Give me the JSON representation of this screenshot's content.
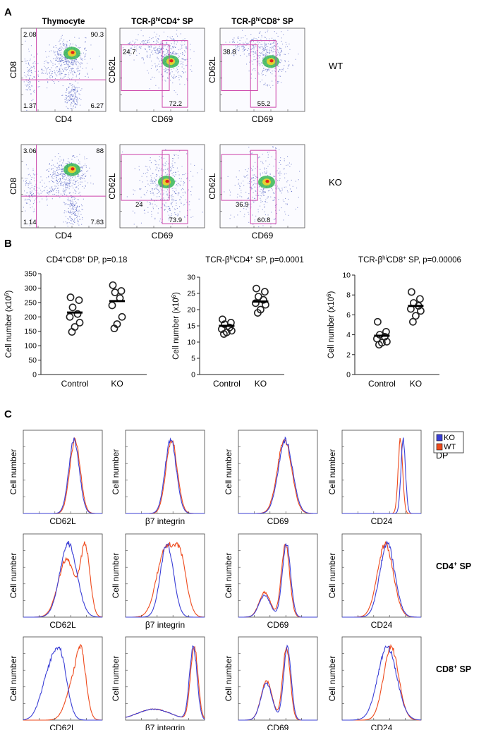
{
  "panels": {
    "a": "A",
    "b": "B",
    "c": "C"
  },
  "panel_a": {
    "columns": [
      "Thymocyte",
      "TCR-βhiCD4+ SP",
      "TCR-βhiCD8+ SP"
    ],
    "rows": [
      "WT",
      "KO"
    ],
    "plots": [
      {
        "row": 0,
        "col": 0,
        "xlabel": "CD4",
        "ylabel": "CD8",
        "gates": "quadrant",
        "values": [
          "2.08",
          "90.3",
          "1.37",
          "6.27"
        ]
      },
      {
        "row": 0,
        "col": 1,
        "xlabel": "CD69",
        "ylabel": "CD62L",
        "gates": "two",
        "values": [
          "24.7",
          "72.2"
        ]
      },
      {
        "row": 0,
        "col": 2,
        "xlabel": "CD69",
        "ylabel": "CD62L",
        "gates": "two",
        "values": [
          "38.8",
          "55.2"
        ]
      },
      {
        "row": 1,
        "col": 0,
        "xlabel": "CD4",
        "ylabel": "CD8",
        "gates": "quadrant",
        "values": [
          "3.06",
          "88",
          "1.14",
          "7.83"
        ]
      },
      {
        "row": 1,
        "col": 1,
        "xlabel": "CD69",
        "ylabel": "CD62L",
        "gates": "two",
        "values": [
          "24",
          "73.9"
        ]
      },
      {
        "row": 1,
        "col": 2,
        "xlabel": "CD69",
        "ylabel": "CD62L",
        "gates": "two",
        "values": [
          "36.9",
          "60.8"
        ]
      }
    ],
    "gate_color": "#cc44aa"
  },
  "chart_data": [
    {
      "type": "scatter",
      "title": "CD4+CD8+ DP, p=0.18",
      "ylabel": "Cell number (x10^6)",
      "ylim": [
        0,
        350
      ],
      "yticks": [
        0,
        50,
        100,
        150,
        200,
        250,
        300,
        350
      ],
      "categories": [
        "Control",
        "KO"
      ],
      "series": [
        {
          "values": [
            268,
            258,
            233,
            210,
            200,
            180,
            165,
            148
          ],
          "mean": 215
        },
        {
          "values": [
            310,
            290,
            285,
            265,
            240,
            200,
            175,
            160
          ],
          "mean": 255
        }
      ]
    },
    {
      "type": "scatter",
      "title": "TCR-βhiCD4+ SP, p=0.0001",
      "ylabel": "Cell number (x10^6)",
      "ylim": [
        0,
        30
      ],
      "yticks": [
        0,
        5,
        10,
        15,
        20,
        25,
        30
      ],
      "categories": [
        "Control",
        "KO"
      ],
      "series": [
        {
          "values": [
            17,
            16,
            15.5,
            14.5,
            14,
            13.5,
            13,
            12.5
          ],
          "mean": 15
        },
        {
          "values": [
            26.5,
            25.5,
            24,
            23,
            22,
            21.5,
            20,
            19
          ],
          "mean": 22.5
        }
      ]
    },
    {
      "type": "scatter",
      "title": "TCR-βhiCD8+ SP, p=0.00006",
      "ylabel": "Cell number (x10^6)",
      "ylim": [
        0,
        10
      ],
      "yticks": [
        0,
        2,
        4,
        6,
        8,
        10
      ],
      "categories": [
        "Control",
        "KO"
      ],
      "series": [
        {
          "values": [
            5.3,
            4.3,
            4.0,
            3.8,
            3.6,
            3.3,
            3.2,
            3.0
          ],
          "mean": 3.9
        },
        {
          "values": [
            8.3,
            7.6,
            7.2,
            6.9,
            6.6,
            6.4,
            5.9,
            5.3
          ],
          "mean": 6.9
        }
      ]
    }
  ],
  "panel_c": {
    "legend": [
      "KO",
      "WT"
    ],
    "colors": {
      "KO": "#3b3fd6",
      "WT": "#ee4a1c"
    },
    "ylabel": "Cell number",
    "columns": [
      "CD62L",
      "β7 integrin",
      "CD69",
      "CD24"
    ],
    "rows": [
      "DP",
      "CD4+ SP",
      "CD8+ SP"
    ],
    "histograms": [
      [
        {
          "ko": [
            [
              2.7,
              0.28,
              1.0
            ]
          ],
          "wt": [
            [
              2.75,
              0.28,
              1.0
            ]
          ]
        },
        {
          "ko": [
            [
              2.4,
              0.3,
              1.0
            ]
          ],
          "wt": [
            [
              2.45,
              0.3,
              1.0
            ]
          ]
        },
        {
          "ko": [
            [
              2.5,
              0.38,
              1.0
            ]
          ],
          "wt": [
            [
              2.45,
              0.38,
              1.0
            ]
          ]
        },
        {
          "ko": [
            [
              3.25,
              0.12,
              1.0
            ]
          ],
          "wt": [
            [
              3.1,
              0.12,
              1.0
            ]
          ]
        }
      ],
      [
        {
          "ko": [
            [
              2.4,
              0.45,
              1.0
            ]
          ],
          "wt": [
            [
              2.3,
              0.45,
              0.8
            ],
            [
              3.3,
              0.25,
              0.95
            ]
          ]
        },
        {
          "ko": [
            [
              2.2,
              0.35,
              1.0
            ]
          ],
          "wt": [
            [
              2.1,
              0.45,
              0.85
            ],
            [
              2.9,
              0.35,
              0.7
            ]
          ]
        },
        {
          "ko": [
            [
              1.4,
              0.3,
              0.3
            ],
            [
              2.55,
              0.22,
              1.0
            ]
          ],
          "wt": [
            [
              1.4,
              0.3,
              0.32
            ],
            [
              2.5,
              0.22,
              0.95
            ]
          ]
        },
        {
          "ko": [
            [
              2.4,
              0.4,
              1.0
            ]
          ],
          "wt": [
            [
              2.3,
              0.42,
              0.95
            ]
          ]
        }
      ],
      [
        {
          "ko": [
            [
              1.4,
              0.45,
              0.9
            ],
            [
              2.0,
              0.35,
              1.0
            ]
          ],
          "wt": [
            [
              2.7,
              0.4,
              0.75
            ],
            [
              3.1,
              0.25,
              0.95
            ]
          ]
        },
        {
          "ko": [
            [
              1.5,
              0.9,
              0.15
            ],
            [
              3.6,
              0.2,
              1.0
            ]
          ],
          "wt": [
            [
              1.5,
              0.9,
              0.15
            ],
            [
              3.65,
              0.2,
              1.0
            ]
          ]
        },
        {
          "ko": [
            [
              1.5,
              0.3,
              0.5
            ],
            [
              2.6,
              0.2,
              1.0
            ]
          ],
          "wt": [
            [
              1.5,
              0.3,
              0.5
            ],
            [
              2.55,
              0.2,
              0.95
            ]
          ]
        },
        {
          "ko": [
            [
              2.4,
              0.5,
              1.0
            ]
          ],
          "wt": [
            [
              2.6,
              0.4,
              0.95
            ]
          ]
        }
      ]
    ]
  }
}
